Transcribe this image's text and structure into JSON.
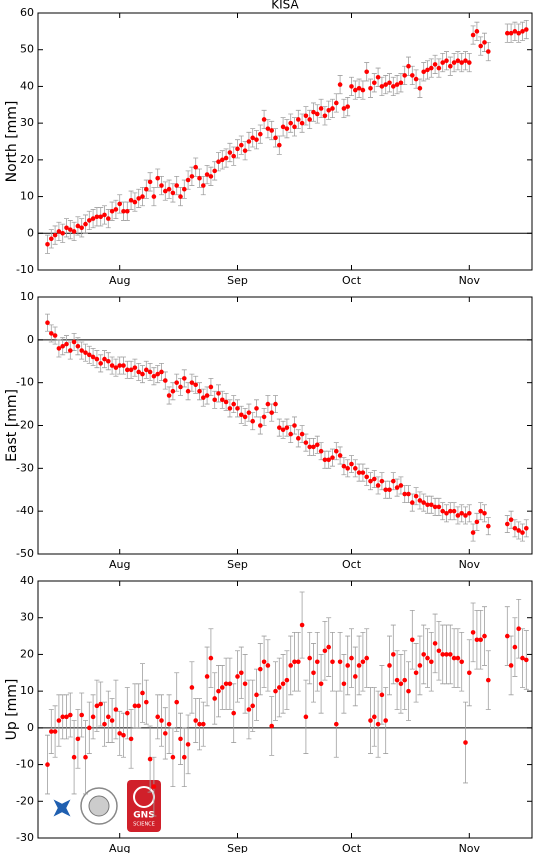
{
  "chart_data": [
    {
      "type": "errorbar",
      "title": "KISA",
      "ylabel": "North [mm]",
      "color": "#ff0000",
      "error_color": "#a0a0a0",
      "zero_line": true,
      "x": [
        194,
        195,
        196,
        197,
        198,
        199,
        200,
        201,
        202,
        203,
        204,
        205,
        206,
        207,
        208,
        209,
        210,
        211,
        212,
        213,
        214,
        215,
        216,
        217,
        218,
        219,
        220,
        221,
        222,
        223,
        224,
        225,
        226,
        227,
        228,
        229,
        230,
        231,
        232,
        233,
        234,
        235,
        236,
        237,
        238,
        239,
        240,
        241,
        242,
        243,
        244,
        245,
        246,
        247,
        248,
        249,
        250,
        251,
        252,
        253,
        254,
        255,
        256,
        257,
        258,
        259,
        260,
        261,
        262,
        263,
        264,
        265,
        266,
        267,
        268,
        269,
        270,
        271,
        272,
        273,
        274,
        275,
        276,
        277,
        278,
        279,
        280,
        281,
        282,
        283,
        284,
        285,
        286,
        287,
        288,
        289,
        290,
        291,
        292,
        293,
        294,
        295,
        296,
        297,
        298,
        299,
        300,
        301,
        302,
        303,
        304,
        305,
        306,
        307,
        308,
        309,
        310,
        315,
        316,
        317,
        318,
        319,
        320
      ],
      "values": [
        -3,
        -1.5,
        -0.5,
        0.5,
        0,
        1.5,
        1,
        0.5,
        2,
        1.5,
        2.5,
        3.5,
        4,
        4.5,
        4.5,
        5,
        4,
        6,
        6.5,
        8,
        6,
        6,
        9,
        8.5,
        9.5,
        10,
        12,
        14,
        10,
        15,
        13,
        11.5,
        12,
        11,
        13,
        10,
        12,
        14.5,
        15.5,
        18,
        15,
        13,
        16,
        15.5,
        17,
        19.5,
        20,
        20.5,
        22,
        21,
        23,
        24,
        22.5,
        25,
        26,
        25.5,
        27,
        31,
        28.5,
        28,
        26,
        24,
        29,
        28.5,
        30,
        29,
        31,
        30,
        32,
        31,
        33,
        32.5,
        34,
        32,
        33.5,
        34,
        35.5,
        40.5,
        34,
        34.5,
        40,
        39,
        39.5,
        39,
        44,
        39.5,
        41,
        42.5,
        40,
        40.5,
        41,
        40,
        40.5,
        41,
        43,
        45.5,
        43,
        42,
        39.5,
        44,
        44.5,
        45,
        46,
        45,
        46.5,
        47,
        45.5,
        46.5,
        47,
        46.5,
        47,
        46.5,
        54,
        55,
        51,
        52,
        49.5,
        54.5,
        54.5,
        55,
        54.5,
        55,
        55.5
      ],
      "error": 2.5,
      "xlim": [
        191.5,
        321.5
      ],
      "xticks": [
        {
          "value": 213,
          "label": "Aug"
        },
        {
          "value": 244,
          "label": "Sep"
        },
        {
          "value": 274,
          "label": "Oct"
        },
        {
          "value": 305,
          "label": "Nov"
        }
      ],
      "ylim": [
        -10,
        60
      ],
      "yticks": [
        -10,
        0,
        10,
        20,
        30,
        40,
        50,
        60
      ]
    },
    {
      "type": "errorbar",
      "ylabel": "East [mm]",
      "color": "#ff0000",
      "error_color": "#a0a0a0",
      "zero_line": true,
      "x": [
        194,
        195,
        196,
        197,
        198,
        199,
        200,
        201,
        202,
        203,
        204,
        205,
        206,
        207,
        208,
        209,
        210,
        211,
        212,
        213,
        214,
        215,
        216,
        217,
        218,
        219,
        220,
        221,
        222,
        223,
        224,
        225,
        226,
        227,
        228,
        229,
        230,
        231,
        232,
        233,
        234,
        235,
        236,
        237,
        238,
        239,
        240,
        241,
        242,
        243,
        244,
        245,
        246,
        247,
        248,
        249,
        250,
        251,
        252,
        253,
        254,
        255,
        256,
        257,
        258,
        259,
        260,
        261,
        262,
        263,
        264,
        265,
        266,
        267,
        268,
        269,
        270,
        271,
        272,
        273,
        274,
        275,
        276,
        277,
        278,
        279,
        280,
        281,
        282,
        283,
        284,
        285,
        286,
        287,
        288,
        289,
        290,
        291,
        292,
        293,
        294,
        295,
        296,
        297,
        298,
        299,
        300,
        301,
        302,
        303,
        304,
        305,
        306,
        307,
        308,
        309,
        310,
        315,
        316,
        317,
        318,
        319,
        320
      ],
      "values": [
        4,
        1.5,
        1,
        -2,
        -1.5,
        -1,
        -2.5,
        -0.5,
        -1.5,
        -2.5,
        -3,
        -3.5,
        -4,
        -4.5,
        -5.5,
        -4.5,
        -5,
        -6,
        -6.5,
        -6,
        -6,
        -7,
        -7,
        -6.5,
        -7.5,
        -8,
        -7,
        -7.5,
        -8.5,
        -8,
        -7.5,
        -9.5,
        -13,
        -12,
        -10,
        -11,
        -9,
        -12,
        -10,
        -10.5,
        -12,
        -13.5,
        -13,
        -11,
        -14,
        -12.5,
        -14,
        -14.5,
        -16,
        -15,
        -16,
        -17.5,
        -18,
        -17,
        -19,
        -16,
        -20,
        -18,
        -15,
        -17,
        -15,
        -20.5,
        -21,
        -20.5,
        -22,
        -20,
        -23,
        -22,
        -24,
        -25,
        -25,
        -24.5,
        -26,
        -28,
        -28,
        -27.5,
        -26,
        -27,
        -29.5,
        -30,
        -29,
        -30,
        -31,
        -31,
        -32,
        -33,
        -32.5,
        -34,
        -33,
        -35,
        -35,
        -33,
        -34.5,
        -34,
        -36,
        -36,
        -38,
        -36.5,
        -37.5,
        -38,
        -38.5,
        -38.5,
        -39,
        -39,
        -40,
        -40.5,
        -40,
        -40,
        -41,
        -40.5,
        -41,
        -40.5,
        -45,
        -42.5,
        -40,
        -40.5,
        -43.5,
        -43,
        -42,
        -44,
        -44.5,
        -45,
        -44
      ],
      "error": 2,
      "xlim": [
        191.5,
        321.5
      ],
      "xticks": [
        {
          "value": 213,
          "label": "Aug"
        },
        {
          "value": 244,
          "label": "Sep"
        },
        {
          "value": 274,
          "label": "Oct"
        },
        {
          "value": 305,
          "label": "Nov"
        }
      ],
      "ylim": [
        -50,
        10
      ],
      "yticks": [
        -50,
        -40,
        -30,
        -20,
        -10,
        0,
        10
      ]
    },
    {
      "type": "errorbar",
      "ylabel": "Up [mm]",
      "color": "#ff0000",
      "error_color": "#a0a0a0",
      "zero_line": true,
      "x": [
        194,
        195,
        196,
        197,
        198,
        199,
        200,
        201,
        202,
        203,
        204,
        205,
        206,
        207,
        208,
        209,
        210,
        211,
        212,
        213,
        214,
        215,
        216,
        217,
        218,
        219,
        220,
        221,
        222,
        223,
        224,
        225,
        226,
        227,
        228,
        229,
        230,
        231,
        232,
        233,
        234,
        235,
        236,
        237,
        238,
        239,
        240,
        241,
        242,
        243,
        244,
        245,
        246,
        247,
        248,
        249,
        250,
        251,
        252,
        253,
        254,
        255,
        256,
        257,
        258,
        259,
        260,
        261,
        262,
        263,
        264,
        265,
        266,
        267,
        268,
        269,
        270,
        271,
        272,
        273,
        274,
        275,
        276,
        277,
        278,
        279,
        280,
        281,
        282,
        283,
        284,
        285,
        286,
        287,
        288,
        289,
        290,
        291,
        292,
        293,
        294,
        295,
        296,
        297,
        298,
        299,
        300,
        301,
        302,
        303,
        304,
        305,
        306,
        307,
        308,
        309,
        310,
        315,
        316,
        317,
        318,
        319,
        320
      ],
      "values": [
        -10,
        -1,
        -1,
        2,
        3,
        3,
        3.5,
        -8,
        -3,
        3.5,
        -8,
        0,
        3,
        6,
        6.5,
        1,
        3,
        2,
        5,
        -1.5,
        -2,
        4,
        -3,
        6,
        6,
        9.5,
        7,
        -8.5,
        -16,
        3,
        2,
        -1.5,
        1,
        -8,
        7,
        -3,
        -8,
        -4.5,
        11,
        2,
        1,
        1,
        14,
        19,
        8,
        10,
        11,
        12,
        12,
        4,
        14,
        15,
        12,
        5,
        6,
        9,
        16,
        18,
        17,
        0.5,
        10,
        11,
        12,
        13,
        17,
        18,
        18,
        28,
        3,
        19,
        15,
        18,
        12,
        21,
        22,
        18,
        1,
        18,
        12,
        17,
        19,
        14,
        17,
        18,
        19,
        2,
        3,
        1,
        9,
        2,
        17,
        20,
        13,
        12,
        13,
        10,
        24,
        15,
        17,
        20,
        19,
        18,
        23,
        21,
        20,
        20,
        20,
        19,
        19,
        18,
        -4,
        15,
        26,
        24,
        24,
        25,
        13,
        25,
        17,
        22,
        27,
        19,
        18.5
      ],
      "errors": [
        8,
        6,
        7,
        7,
        6,
        6,
        6,
        10,
        8,
        6,
        10,
        7,
        6,
        7,
        6,
        6,
        7,
        6,
        8,
        6,
        6,
        7,
        8,
        6,
        6,
        8,
        6,
        9,
        8,
        6,
        7,
        7,
        8,
        8,
        8,
        7,
        8,
        8,
        7,
        6,
        7,
        6,
        8,
        8,
        7,
        7,
        6,
        7,
        7,
        8,
        7,
        7,
        8,
        8,
        7,
        7,
        7,
        7,
        7,
        8,
        8,
        8,
        8,
        8,
        8,
        8,
        8,
        9,
        10,
        7,
        8,
        8,
        8,
        8,
        8,
        8,
        9,
        8,
        8,
        8,
        8,
        8,
        8,
        8,
        8,
        9,
        8,
        9,
        8,
        9,
        8,
        8,
        8,
        8,
        8,
        8,
        8,
        8,
        8,
        8,
        8,
        8,
        8,
        8,
        8,
        8,
        8,
        8,
        8,
        8,
        11,
        9,
        8,
        8,
        8,
        8,
        8,
        8,
        8,
        8,
        8,
        8,
        8
      ],
      "xlim": [
        191.5,
        321.5
      ],
      "xticks": [
        {
          "value": 213,
          "label": "Aug"
        },
        {
          "value": 244,
          "label": "Sep"
        },
        {
          "value": 274,
          "label": "Oct"
        },
        {
          "value": 305,
          "label": "Nov"
        }
      ],
      "ylim": [
        -30,
        40
      ],
      "yticks": [
        -30,
        -20,
        -10,
        0,
        10,
        20,
        30,
        40
      ],
      "logo_text": [
        "GNS",
        "SCIENCE"
      ]
    }
  ]
}
